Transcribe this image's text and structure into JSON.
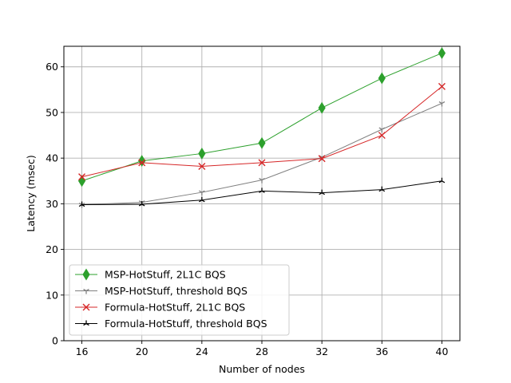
{
  "chart_data": {
    "type": "line",
    "title": "",
    "xlabel": "Number of nodes",
    "ylabel": "Latency (msec)",
    "x": [
      16,
      20,
      24,
      28,
      32,
      36,
      40
    ],
    "xticks": [
      16,
      20,
      24,
      28,
      32,
      36,
      40
    ],
    "xlim": [
      14.8,
      41.2
    ],
    "ylim": [
      0,
      64.5
    ],
    "yticks": [
      0,
      10,
      20,
      30,
      40,
      50,
      60
    ],
    "grid": true,
    "legend_position": "lower-left",
    "series": [
      {
        "name": "MSP-HotStuff, 2L1C BQS",
        "color": "#2ca02c",
        "marker": "thin-diamond",
        "values": [
          35.0,
          39.4,
          41.0,
          43.3,
          51.0,
          57.5,
          63.0
        ]
      },
      {
        "name": "MSP-HotStuff, threshold BQS",
        "color": "#808080",
        "marker": "tri-down",
        "values": [
          29.8,
          30.3,
          32.5,
          35.2,
          40.2,
          46.3,
          52.0
        ]
      },
      {
        "name": "Formula-HotStuff, 2L1C BQS",
        "color": "#d62728",
        "marker": "x",
        "values": [
          35.9,
          39.0,
          38.2,
          39.0,
          39.9,
          45.0,
          55.7
        ]
      },
      {
        "name": "Formula-HotStuff, threshold BQS",
        "color": "#000000",
        "marker": "tri-up",
        "values": [
          29.8,
          29.9,
          30.8,
          32.8,
          32.4,
          33.1,
          35.0
        ]
      }
    ]
  }
}
